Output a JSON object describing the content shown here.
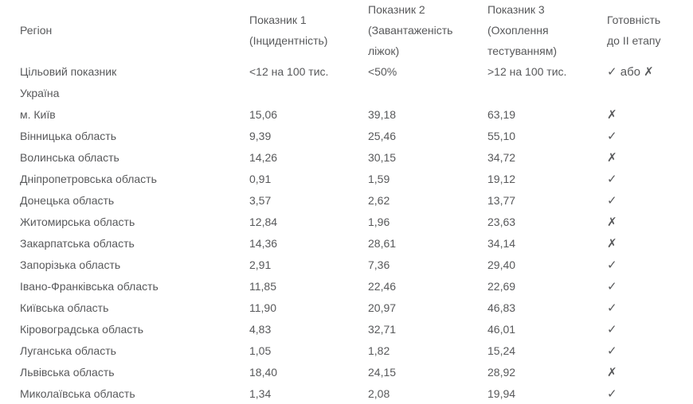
{
  "table": {
    "columns": [
      {
        "title": "Регіон",
        "subtitle": ""
      },
      {
        "title": "Показник 1",
        "subtitle": "(Інцидентність)"
      },
      {
        "title": "Показник 2",
        "subtitle": "(Завантаженість ліжок)"
      },
      {
        "title": "Показник 3",
        "subtitle": "(Охоплення тестуванням)"
      },
      {
        "title": "Готовність до II етапу",
        "subtitle": ""
      }
    ],
    "target_row": {
      "region": "Цільовий показник",
      "indicator1": "<12 на 100 тис.",
      "indicator2": "<50%",
      "indicator3": ">12 на 100 тис.",
      "status": "✓ або ✗"
    },
    "rows": [
      {
        "region": "Україна",
        "indicator1": "",
        "indicator2": "",
        "indicator3": "",
        "status": ""
      },
      {
        "region": "м. Київ",
        "indicator1": "15,06",
        "indicator2": "39,18",
        "indicator3": "63,19",
        "status": "✗"
      },
      {
        "region": "Вінницька область",
        "indicator1": "9,39",
        "indicator2": "25,46",
        "indicator3": "55,10",
        "status": "✓"
      },
      {
        "region": "Волинська область",
        "indicator1": "14,26",
        "indicator2": "30,15",
        "indicator3": "34,72",
        "status": "✗"
      },
      {
        "region": "Дніпропетровська область",
        "indicator1": "0,91",
        "indicator2": "1,59",
        "indicator3": "19,12",
        "status": "✓"
      },
      {
        "region": "Донецька область",
        "indicator1": "3,57",
        "indicator2": "2,62",
        "indicator3": "13,77",
        "status": "✓"
      },
      {
        "region": "Житомирська область",
        "indicator1": "12,84",
        "indicator2": "1,96",
        "indicator3": "23,63",
        "status": "✗"
      },
      {
        "region": "Закарпатська область",
        "indicator1": "14,36",
        "indicator2": "28,61",
        "indicator3": "34,14",
        "status": "✗"
      },
      {
        "region": "Запорізька область",
        "indicator1": "2,91",
        "indicator2": "7,36",
        "indicator3": "29,40",
        "status": "✓"
      },
      {
        "region": "Івано-Франківська область",
        "indicator1": "11,85",
        "indicator2": "22,46",
        "indicator3": "22,69",
        "status": "✓"
      },
      {
        "region": "Київська область",
        "indicator1": "11,90",
        "indicator2": "20,97",
        "indicator3": "46,83",
        "status": "✓"
      },
      {
        "region": "Кіровоградська область",
        "indicator1": "4,83",
        "indicator2": "32,71",
        "indicator3": "46,01",
        "status": "✓"
      },
      {
        "region": "Луганська область",
        "indicator1": "1,05",
        "indicator2": "1,82",
        "indicator3": "15,24",
        "status": "✓"
      },
      {
        "region": "Львівська область",
        "indicator1": "18,40",
        "indicator2": "24,15",
        "indicator3": "28,92",
        "status": "✗"
      },
      {
        "region": "Миколаївська область",
        "indicator1": "1,34",
        "indicator2": "2,08",
        "indicator3": "19,94",
        "status": "✓"
      }
    ],
    "colors": {
      "text": "#58595b",
      "background": "#ffffff"
    }
  }
}
